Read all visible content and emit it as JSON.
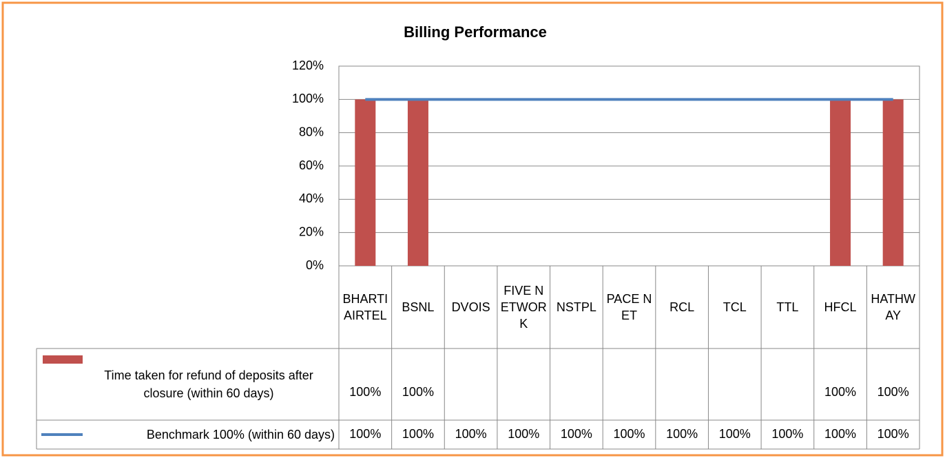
{
  "chart_data": {
    "type": "bar",
    "title": "Billing Performance",
    "categories": [
      "BHARTI AIRTEL",
      "BSNL",
      "DVOIS",
      "FIVE NETWORK",
      "NSTPL",
      "PACE NET",
      "RCL",
      "TCL",
      "TTL",
      "HFCL",
      "HATHWAY"
    ],
    "series": [
      {
        "name": "Time taken for refund of deposits after closure (within 60 days)",
        "type": "bar",
        "color": "#c0504d",
        "values": [
          100,
          100,
          null,
          null,
          null,
          null,
          null,
          null,
          null,
          100,
          100
        ],
        "value_labels": [
          "100%",
          "100%",
          null,
          null,
          null,
          null,
          null,
          null,
          null,
          "100%",
          "100%"
        ]
      },
      {
        "name": "Benchmark 100% (within 60 days)",
        "type": "line",
        "color": "#4f81bd",
        "values": [
          100,
          100,
          100,
          100,
          100,
          100,
          100,
          100,
          100,
          100,
          100
        ],
        "value_labels": [
          "100%",
          "100%",
          "100%",
          "100%",
          "100%",
          "100%",
          "100%",
          "100%",
          "100%",
          "100%",
          "100%"
        ]
      }
    ],
    "ylim": [
      0,
      120
    ],
    "yticks": [
      {
        "value": 0,
        "label": "0%"
      },
      {
        "value": 20,
        "label": "20%"
      },
      {
        "value": 40,
        "label": "40%"
      },
      {
        "value": 60,
        "label": "60%"
      },
      {
        "value": 80,
        "label": "80%"
      },
      {
        "value": 100,
        "label": "100%"
      },
      {
        "value": 120,
        "label": "120%"
      }
    ],
    "grid": true
  }
}
